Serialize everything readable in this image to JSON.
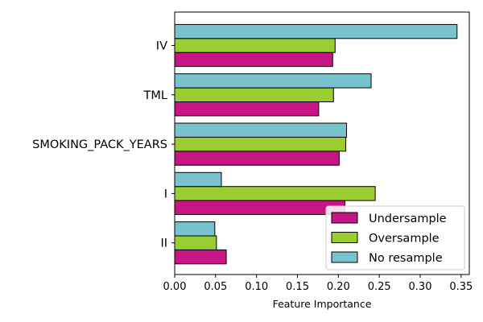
{
  "chart_data": {
    "type": "bar",
    "orientation": "horizontal",
    "title": "",
    "xlabel": "Feature Importance",
    "ylabel": "",
    "xlim": [
      0,
      0.36
    ],
    "xticks": [
      0.0,
      0.05,
      0.1,
      0.15,
      0.2,
      0.25,
      0.3,
      0.35
    ],
    "xtick_labels": [
      "0.00",
      "0.05",
      "0.10",
      "0.15",
      "0.20",
      "0.25",
      "0.30",
      "0.35"
    ],
    "categories": [
      "IV",
      "TML",
      "SMOKING_PACK_YEARS",
      "I",
      "II"
    ],
    "series": [
      {
        "name": "Undersample",
        "color": "#c71585",
        "values": [
          0.193,
          0.176,
          0.201,
          0.208,
          0.063
        ]
      },
      {
        "name": "Oversample",
        "color": "#9acd32",
        "values": [
          0.196,
          0.194,
          0.209,
          0.245,
          0.051
        ]
      },
      {
        "name": "No resample",
        "color": "#78c3cd",
        "values": [
          0.345,
          0.24,
          0.21,
          0.057,
          0.049
        ]
      }
    ],
    "legend_position": "lower-right",
    "grid": false
  }
}
